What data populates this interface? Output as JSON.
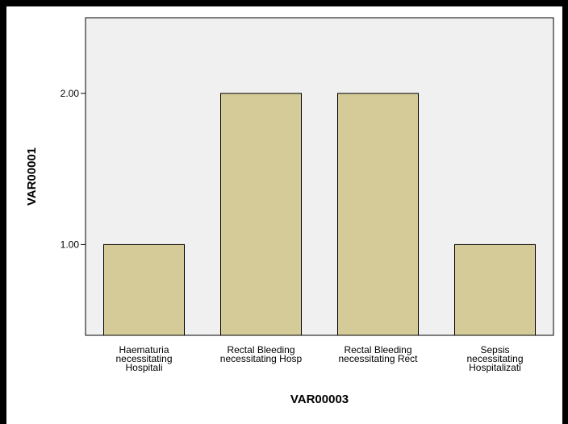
{
  "chart_data": {
    "type": "bar",
    "categories": [
      [
        "Haematuria",
        "necessitating",
        "Hospitali"
      ],
      [
        "Rectal Bleeding",
        "necessitating Hosp"
      ],
      [
        "Rectal Bleeding",
        "necessitating Rect"
      ],
      [
        "Sepsis",
        "necessitating",
        "Hospitalizati"
      ]
    ],
    "values": [
      1,
      2,
      2,
      1
    ],
    "xlabel": "VAR00003",
    "ylabel": "VAR00001",
    "ylim": [
      0.4,
      2.5
    ],
    "yticks": [
      1.0,
      2.0
    ],
    "ytick_labels": [
      "1.00",
      "2.00"
    ],
    "grid": false,
    "colors": {
      "bar_fill": "#d4cb98",
      "bar_stroke": "#000000",
      "plot_bg": "#f0f0f0",
      "page_bg": "#ffffff",
      "border": "#000000"
    }
  }
}
